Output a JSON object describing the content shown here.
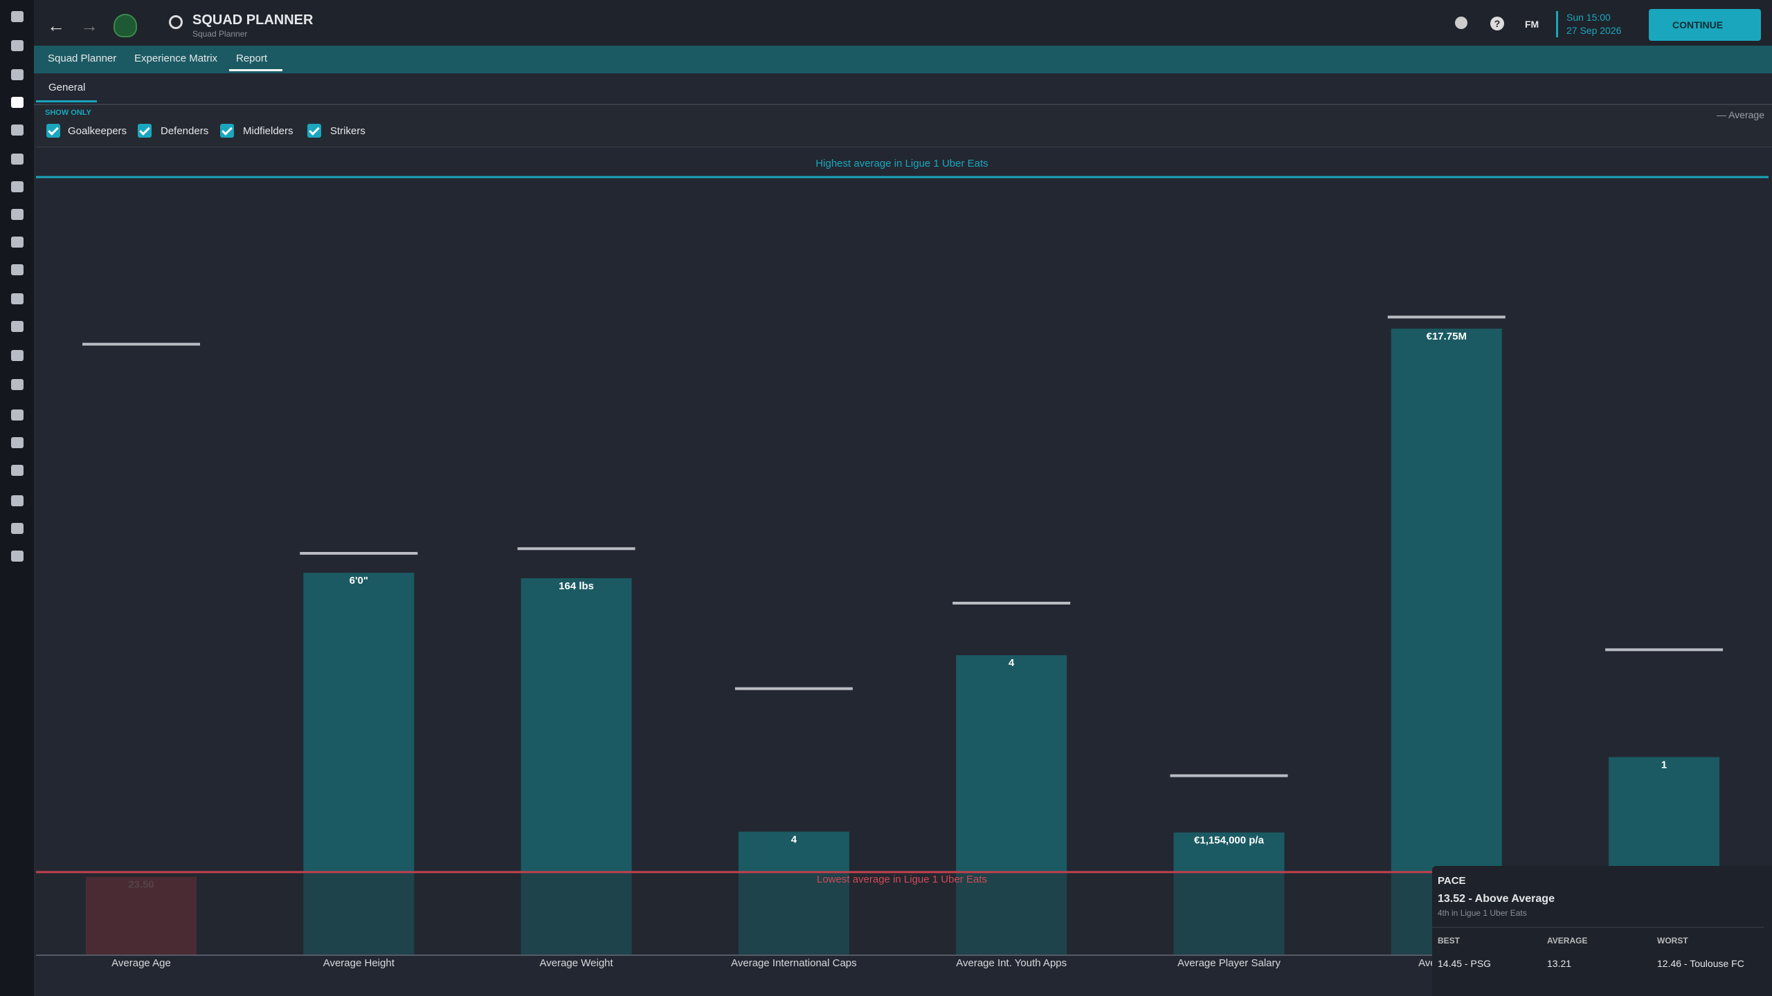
{
  "header": {
    "title": "SQUAD PLANNER",
    "subtitle": "Squad Planner",
    "fm": "FM",
    "time": "Sun 15:00",
    "date": "27 Sep 2026",
    "continue": "CONTINUE"
  },
  "tabs": [
    "Squad Planner",
    "Experience Matrix",
    "Report"
  ],
  "subtabs": [
    "General"
  ],
  "filters": {
    "title": "SHOW ONLY",
    "options": [
      "Goalkeepers",
      "Defenders",
      "Midfielders",
      "Strikers"
    ]
  },
  "legend": "— Average",
  "chart_data": {
    "type": "bar",
    "highest_label": "Highest average in Ligue 1 Uber Eats",
    "lowest_label": "Lowest average in Ligue 1 Uber Eats",
    "categories": [
      "Average Age",
      "Average Height",
      "Average Weight",
      "Average International Caps",
      "Average Int. Youth Apps",
      "Average Player Salary",
      "Average Pla",
      null
    ],
    "values": [
      10,
      49.1,
      48.4,
      15.8,
      38.5,
      15.7,
      80.5,
      25.4
    ],
    "bar_labels": [
      "23.50",
      "6'0\"",
      "164 lbs",
      "4",
      "4",
      "€1,154,000 p/a",
      "€17.75M",
      "1"
    ],
    "averages": [
      78.5,
      51.6,
      52.2,
      34.2,
      45.2,
      23.0,
      82.0,
      39.2
    ],
    "ylim": [
      0,
      100
    ],
    "lowest": 10.6,
    "color": "#1b5a62",
    "below_color": "#6b2f37"
  },
  "tooltip": {
    "title": "PACE",
    "rating": "13.52 - Above Average",
    "rank": "4th in Ligue 1 Uber Eats",
    "headers": [
      "BEST",
      "AVERAGE",
      "WORST"
    ],
    "values": [
      "14.45 - PSG",
      "13.21",
      "12.46 - Toulouse FC"
    ]
  }
}
